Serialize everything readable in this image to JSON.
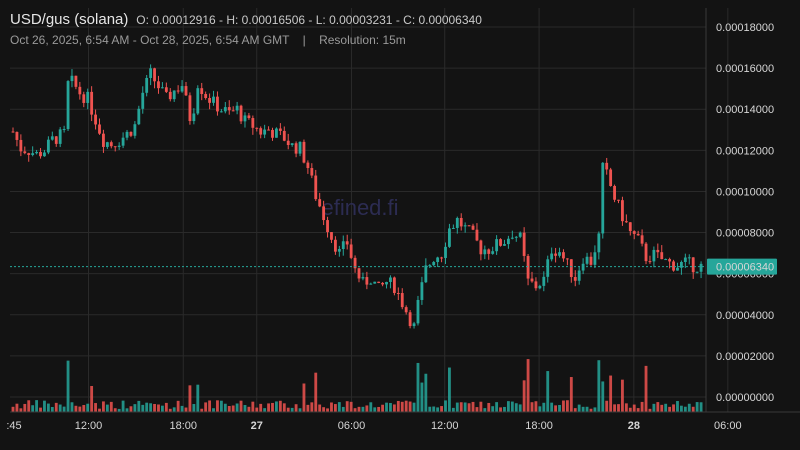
{
  "header": {
    "symbol": "USD/gus (solana)",
    "ohlc": "O: 0.00012916 - H: 0.00016506 - L: 0.00003231 - C: 0.00006340",
    "range": "Oct 26, 2025, 6:54 AM - Oct 28, 2025, 6:54 AM GMT",
    "separator": "|",
    "resolution": "Resolution: 15m"
  },
  "watermark": "efined.fi",
  "colors": {
    "up": "#26a69a",
    "down": "#ef5350",
    "price_line": "#26a69a",
    "background": "#131313",
    "grid": "#2a2a2a"
  },
  "chart_data": {
    "type": "candlestick",
    "y_ticks": [
      "0.00000000",
      "0.00002000",
      "0.00004000",
      "0.00006000",
      "0.00008000",
      "0.00010000",
      "0.00012000",
      "0.00014000",
      "0.00016000",
      "0.00018000"
    ],
    "ylim": [
      0,
      0.00018
    ],
    "x_ticks": [
      {
        "label": ":45",
        "bold": false
      },
      {
        "label": "12:00",
        "bold": false
      },
      {
        "label": "18:00",
        "bold": false
      },
      {
        "label": "27",
        "bold": true
      },
      {
        "label": "06:00",
        "bold": false
      },
      {
        "label": "12:00",
        "bold": false
      },
      {
        "label": "18:00",
        "bold": false
      },
      {
        "label": "28",
        "bold": true
      },
      {
        "label": "06:00",
        "bold": false
      }
    ],
    "last_price": "0.00006340",
    "open": 0.00012916,
    "high": 0.00016506,
    "low": 3.231e-05,
    "close": 6.34e-05,
    "close_path": [
      [
        0,
        0.000129
      ],
      [
        2,
        0.000121
      ],
      [
        4,
        0.00012
      ],
      [
        6,
        0.000118
      ],
      [
        8,
        0.00012
      ],
      [
        10,
        0.000125
      ],
      [
        13,
        0.000128
      ],
      [
        14,
        0.000152
      ],
      [
        15,
        0.000153
      ],
      [
        17,
        0.000148
      ],
      [
        19,
        0.000145
      ],
      [
        21,
        0.000135
      ],
      [
        23,
        0.000125
      ],
      [
        25,
        0.000123
      ],
      [
        27,
        0.000125
      ],
      [
        29,
        0.000128
      ],
      [
        31,
        0.000132
      ],
      [
        33,
        0.000148
      ],
      [
        35,
        0.000157
      ],
      [
        37,
        0.000151
      ],
      [
        39,
        0.000145
      ],
      [
        41,
        0.000149
      ],
      [
        43,
        0.000152
      ],
      [
        45,
        0.000136
      ],
      [
        46,
        0.000141
      ],
      [
        47,
        0.000153
      ],
      [
        49,
        0.000147
      ],
      [
        51,
        0.000143
      ],
      [
        53,
        0.00014
      ],
      [
        55,
        0.000138
      ],
      [
        57,
        0.00014
      ],
      [
        59,
        0.000134
      ],
      [
        61,
        0.000132
      ],
      [
        63,
        0.000129
      ],
      [
        65,
        0.00013
      ],
      [
        67,
        0.000128
      ],
      [
        69,
        0.000126
      ],
      [
        71,
        0.000122
      ],
      [
        73,
        0.000121
      ],
      [
        75,
        0.000112
      ],
      [
        77,
        9.8e-05
      ],
      [
        79,
        8.8e-05
      ],
      [
        81,
        7.8e-05
      ],
      [
        83,
        7e-05
      ],
      [
        85,
        7.5e-05
      ],
      [
        87,
        6.2e-05
      ],
      [
        89,
        5.5e-05
      ],
      [
        91,
        5.8e-05
      ],
      [
        93,
        5.2e-05
      ],
      [
        95,
        5.6e-05
      ],
      [
        97,
        5.4e-05
      ],
      [
        99,
        4.6e-05
      ],
      [
        101,
        3.8e-05
      ],
      [
        102,
        3.4e-05
      ],
      [
        103,
        4.5e-05
      ],
      [
        105,
        6.2e-05
      ],
      [
        107,
        6.8e-05
      ],
      [
        109,
        7e-05
      ],
      [
        111,
        8.2e-05
      ],
      [
        113,
        8.6e-05
      ],
      [
        115,
        8.2e-05
      ],
      [
        117,
        7.8e-05
      ],
      [
        119,
        7.2e-05
      ],
      [
        121,
        7.2e-05
      ],
      [
        123,
        7.4e-05
      ],
      [
        125,
        7.6e-05
      ],
      [
        127,
        8e-05
      ],
      [
        129,
        7.7e-05
      ],
      [
        131,
        5.6e-05
      ],
      [
        133,
        5.4e-05
      ],
      [
        135,
        5.7e-05
      ],
      [
        137,
        7.2e-05
      ],
      [
        139,
        7.1e-05
      ],
      [
        141,
        6.4e-05
      ],
      [
        143,
        5.8e-05
      ],
      [
        145,
        6.8e-05
      ],
      [
        147,
        6.6e-05
      ],
      [
        149,
        7.8e-05
      ],
      [
        150,
        0.000111
      ],
      [
        151,
        0.000108
      ],
      [
        153,
        9.7e-05
      ],
      [
        155,
        8.8e-05
      ],
      [
        157,
        8e-05
      ],
      [
        159,
        7.6e-05
      ],
      [
        161,
        6.8e-05
      ],
      [
        163,
        6.9e-05
      ],
      [
        165,
        6.7e-05
      ],
      [
        167,
        6.5e-05
      ],
      [
        169,
        6.4e-05
      ],
      [
        171,
        6.5e-05
      ],
      [
        173,
        6.4e-05
      ],
      [
        175,
        6.34e-05
      ]
    ]
  }
}
